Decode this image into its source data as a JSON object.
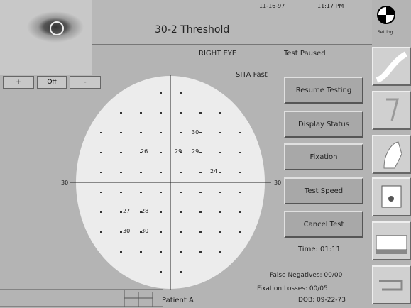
{
  "header": {
    "date": "11-16-97",
    "time": "11:17 PM",
    "title": "30-2 Threshold",
    "logo_label": "Setting"
  },
  "camera_controls": [
    "+",
    "Off",
    "-"
  ],
  "status": {
    "eye": "RIGHT EYE",
    "state": "Test Paused",
    "strategy": "SITA Fast"
  },
  "field": {
    "axis_left": "30",
    "axis_right": "30",
    "values": [
      "30",
      "26",
      "29",
      "29",
      "24",
      "27",
      "28",
      "30",
      "30"
    ]
  },
  "buttons": [
    "Resume Testing",
    "Display Status",
    "Fixation",
    "Test Speed",
    "Cancel Test"
  ],
  "info": {
    "time": "Time: 01:11",
    "false_negatives": "False Negatives: 00/00",
    "fixation_losses": "Fixation Losses: 00/05",
    "dob": "DOB: 09-22-73",
    "patient": "Patient A"
  }
}
